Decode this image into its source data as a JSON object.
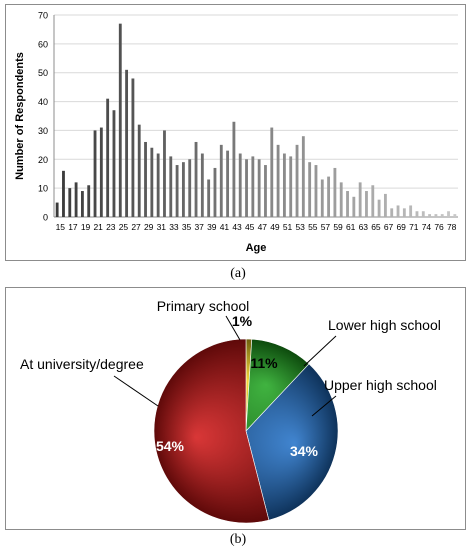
{
  "colors": {
    "bar_dark": "#3a3a3a",
    "bar_light": "#c8c8c8",
    "grid": "#d9d9d9",
    "axis": "#8c8c8c",
    "panel_border": "#8c8c8c"
  },
  "captions": {
    "a": "(a)",
    "b": "(b)"
  },
  "chart_data": [
    {
      "type": "bar",
      "xlabel": "Age",
      "ylabel": "Number of Respondents",
      "ylim": [
        0,
        70
      ],
      "yticks": [
        "0",
        "10",
        "20",
        "30",
        "40",
        "50",
        "60",
        "70"
      ],
      "grid": true,
      "x_tick_labels": [
        "15",
        "17",
        "19",
        "21",
        "23",
        "25",
        "27",
        "29",
        "31",
        "33",
        "35",
        "37",
        "39",
        "41",
        "43",
        "45",
        "47",
        "49",
        "51",
        "53",
        "55",
        "57",
        "59",
        "61",
        "63",
        "65",
        "67",
        "69",
        "71",
        "74",
        "76",
        "78"
      ],
      "categories": [
        "15",
        "16",
        "17",
        "18",
        "19",
        "20",
        "21",
        "22",
        "23",
        "24",
        "25",
        "26",
        "27",
        "28",
        "29",
        "30",
        "31",
        "32",
        "33",
        "34",
        "35",
        "36",
        "37",
        "38",
        "39",
        "40",
        "41",
        "42",
        "43",
        "44",
        "45",
        "46",
        "47",
        "48",
        "49",
        "50",
        "51",
        "52",
        "53",
        "54",
        "55",
        "56",
        "57",
        "58",
        "59",
        "60",
        "61",
        "62",
        "63",
        "64",
        "65",
        "66",
        "67",
        "68",
        "69",
        "70",
        "71",
        "72",
        "74",
        "75",
        "76",
        "77",
        "78",
        "79"
      ],
      "values": [
        5,
        16,
        10,
        12,
        9,
        11,
        30,
        31,
        41,
        37,
        67,
        51,
        48,
        32,
        26,
        24,
        22,
        30,
        21,
        18,
        19,
        20,
        26,
        22,
        13,
        17,
        25,
        23,
        33,
        22,
        20,
        21,
        20,
        18,
        31,
        25,
        22,
        21,
        25,
        28,
        19,
        18,
        13,
        14,
        17,
        12,
        9,
        7,
        12,
        9,
        11,
        6,
        8,
        3,
        4,
        3,
        4,
        2,
        2,
        1,
        1,
        1,
        2,
        1
      ]
    },
    {
      "type": "pie",
      "categories": [
        "Primary school",
        "Lower high school",
        "Upper high school",
        "At university/degree"
      ],
      "values": [
        1,
        11,
        34,
        54
      ],
      "value_labels": [
        "1%",
        "11%",
        "34%",
        "54%"
      ],
      "colors": [
        "#f2d21a",
        "#1ea51e",
        "#1f6fc8",
        "#d21414"
      ]
    }
  ]
}
